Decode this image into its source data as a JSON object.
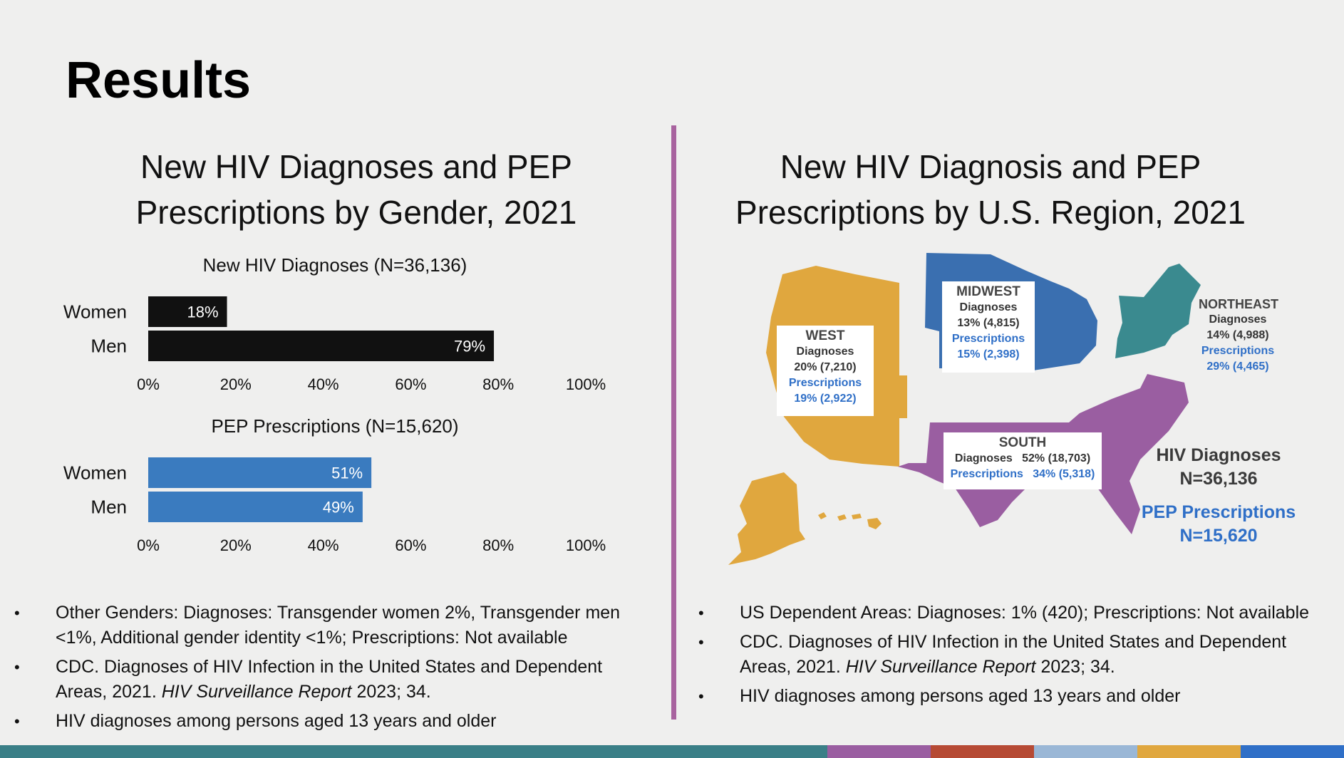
{
  "slide": {
    "title": "Results"
  },
  "left_panel": {
    "title_line1": "New HIV Diagnoses and PEP",
    "title_line2": "Prescriptions by Gender, 2021",
    "bullets": [
      {
        "text": "Other Genders: Diagnoses: Transgender women 2%, Transgender men <1%, Additional gender identity <1%; Prescriptions: Not available"
      },
      {
        "pre": "CDC. Diagnoses of HIV Infection in the United States and Dependent Areas, 2021. ",
        "em": "HIV Surveillance Report",
        "post": " 2023; 34."
      },
      {
        "text": "HIV diagnoses among persons aged 13 years and older"
      }
    ]
  },
  "right_panel": {
    "title_line1": "New HIV Diagnosis and PEP",
    "title_line2": "Prescriptions by U.S. Region, 2021",
    "bullets": [
      {
        "text": "US Dependent Areas: Diagnoses: 1% (420); Prescriptions: Not available"
      },
      {
        "pre": "CDC. Diagnoses of HIV Infection in the United States and Dependent Areas, 2021. ",
        "em": "HIV Surveillance Report",
        "post": " 2023; 34."
      },
      {
        "text": "HIV diagnoses among persons aged 13 years and older"
      }
    ],
    "regions": {
      "west": {
        "name": "WEST",
        "diag_label": "Diagnoses",
        "diag_value": "20% (7,210)",
        "presc_label": "Prescriptions",
        "presc_value": "19% (2,922)"
      },
      "midwest": {
        "name": "MIDWEST",
        "diag_label": "Diagnoses",
        "diag_value": "13% (4,815)",
        "presc_label": "Prescriptions",
        "presc_value": "15% (2,398)"
      },
      "northeast": {
        "name": "NORTHEAST",
        "diag_label": "Diagnoses",
        "diag_value": "14% (4,988)",
        "presc_label": "Prescriptions",
        "presc_value": "29% (4,465)"
      },
      "south": {
        "name": "SOUTH",
        "diag_label": "Diagnoses",
        "diag_value": "52% (18,703)",
        "presc_label": "Prescriptions",
        "presc_value": "34% (5,318)"
      }
    },
    "totals": {
      "diag_line1": "HIV Diagnoses",
      "diag_line2": "N=36,136",
      "presc_line1": "PEP Prescriptions",
      "presc_line2": "N=15,620"
    }
  },
  "colors": {
    "diagnoses_bar": "#111111",
    "prescriptions_bar": "#3a7bbf",
    "west": "#e0a73e",
    "midwest": "#3a6fb0",
    "northeast": "#3a8a8f",
    "south": "#9a5ea1",
    "divider": "#a8639f"
  },
  "footer_colors": [
    "#3a7f87",
    "#3a7f87",
    "#3a7f87",
    "#3a7f87",
    "#3a7f87",
    "#3a7f87",
    "#3a7f87",
    "#3a7f87",
    "#9a5ea1",
    "#b64a34",
    "#9ab7d6",
    "#e0a73e",
    "#2f6fc7"
  ],
  "chart_data": [
    {
      "type": "bar",
      "orientation": "horizontal",
      "title": "New HIV Diagnoses (N=36,136)",
      "categories": [
        "Women",
        "Men"
      ],
      "values": [
        18,
        79
      ],
      "value_labels": [
        "18%",
        "79%"
      ],
      "xlim": [
        0,
        100
      ],
      "xticks": [
        "0%",
        "20%",
        "40%",
        "60%",
        "80%",
        "100%"
      ],
      "color": "#111111"
    },
    {
      "type": "bar",
      "orientation": "horizontal",
      "title": "PEP Prescriptions (N=15,620)",
      "categories": [
        "Women",
        "Men"
      ],
      "values": [
        51,
        49
      ],
      "value_labels": [
        "51%",
        "49%"
      ],
      "xlim": [
        0,
        100
      ],
      "xticks": [
        "0%",
        "20%",
        "40%",
        "60%",
        "80%",
        "100%"
      ],
      "color": "#3a7bbf"
    }
  ]
}
